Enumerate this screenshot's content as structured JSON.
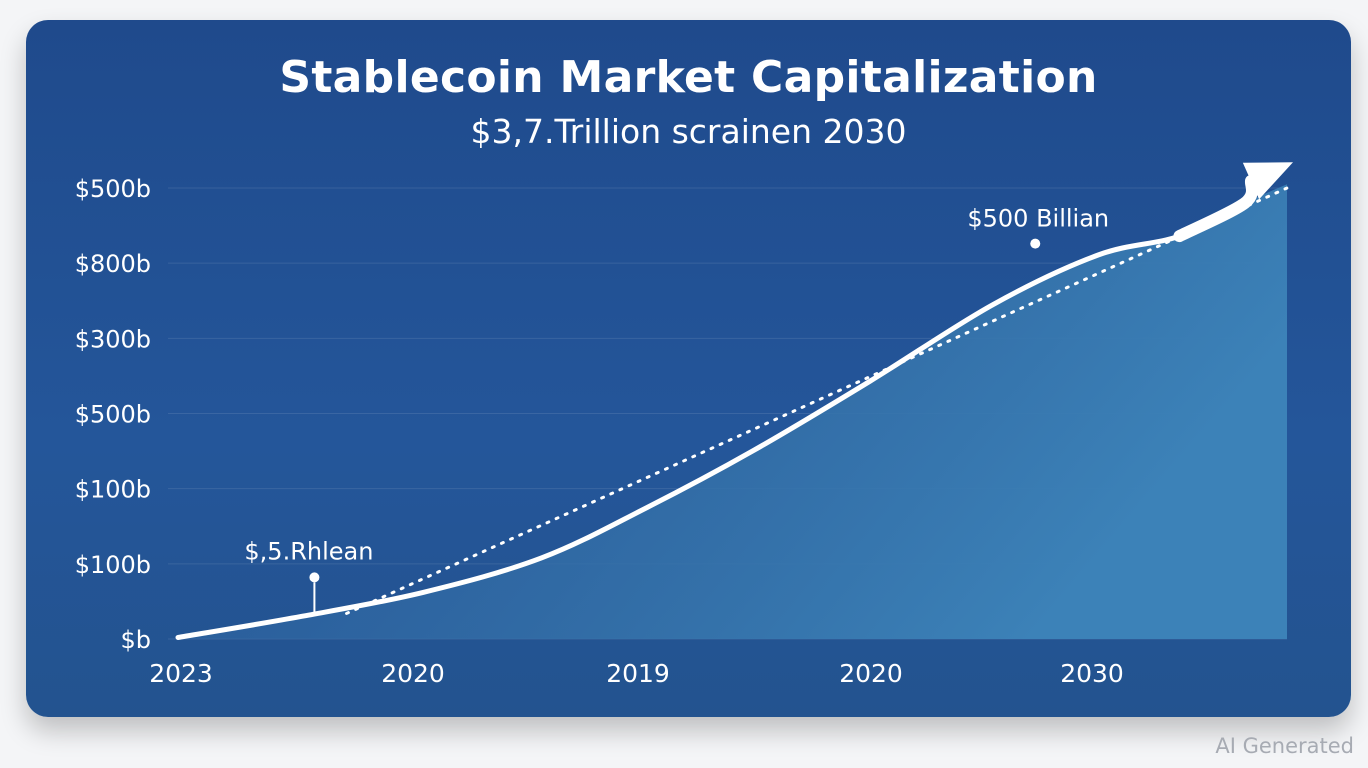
{
  "chart_data": {
    "type": "area",
    "title": "Stablecoin Market Capitalization",
    "subtitle": "$3,7.Trillion scrainen 2030",
    "y_tick_labels": [
      "$b",
      "$100b",
      "$100b",
      "$500b",
      "$300b",
      "$800b",
      "$500b"
    ],
    "x_tick_labels": [
      "2023",
      "2020",
      "2019",
      "2020",
      "2030"
    ],
    "x_range": [
      0,
      1
    ],
    "y_range": [
      0,
      6
    ],
    "grid": true,
    "series": [
      {
        "style": "solid-area",
        "points": [
          [
            0.0,
            0.02
          ],
          [
            0.111,
            0.3
          ],
          [
            0.221,
            0.62
          ],
          [
            0.328,
            1.08
          ],
          [
            0.423,
            1.75
          ],
          [
            0.518,
            2.5
          ],
          [
            0.624,
            3.43
          ],
          [
            0.735,
            4.45
          ],
          [
            0.83,
            5.11
          ],
          [
            0.903,
            5.36
          ],
          [
            0.962,
            5.8
          ],
          [
            1.0,
            6.05
          ]
        ]
      },
      {
        "style": "dotted",
        "points": [
          [
            0.152,
            0.34
          ],
          [
            1.0,
            6.0
          ]
        ]
      }
    ],
    "annotations": [
      {
        "text": "$,5.Rhlean",
        "x": 0.123,
        "y": 0.82
      },
      {
        "text": "$500 Billian",
        "x": 0.773,
        "y": 5.26
      }
    ]
  },
  "watermark": "AI Generated"
}
